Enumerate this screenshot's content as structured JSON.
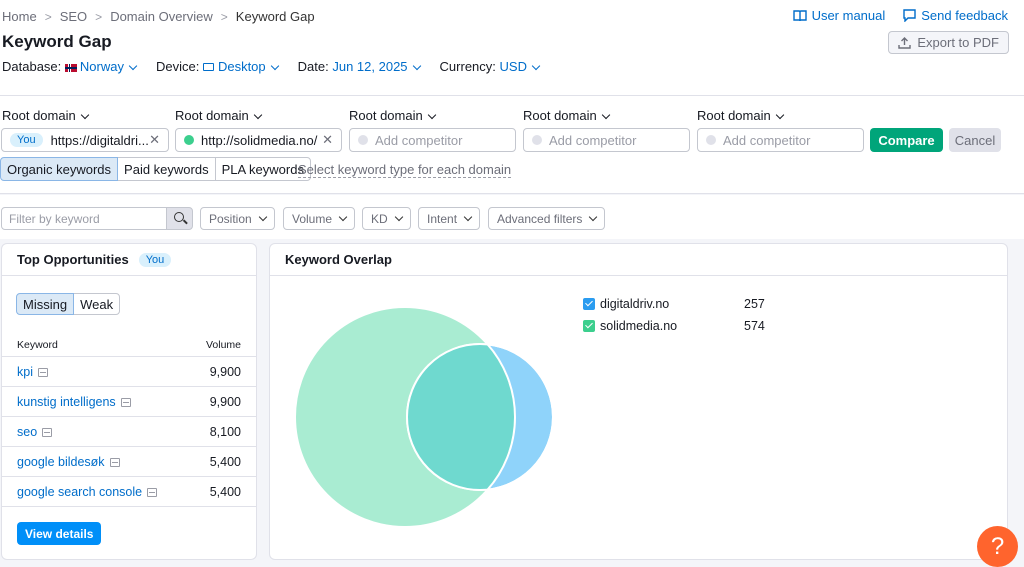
{
  "breadcrumb": [
    "Home",
    "SEO",
    "Domain Overview",
    "Keyword Gap"
  ],
  "breadcrumb_sep": ">",
  "links": {
    "manual": "User manual",
    "feedback": "Send feedback"
  },
  "title": "Keyword Gap",
  "export_label": "Export to PDF",
  "meta": {
    "database_label": "Database:",
    "database_value": "Norway",
    "device_label": "Device:",
    "device_value": "Desktop",
    "date_label": "Date:",
    "date_value": "Jun 12, 2025",
    "currency_label": "Currency:",
    "currency_value": "USD"
  },
  "root_label": "Root domain",
  "domains": [
    {
      "badge": "You",
      "value": "https://digitaldri...",
      "dot_color": ""
    },
    {
      "badge": "",
      "value": "http://solidmedia.no/",
      "dot_color": "#3ccf8e"
    }
  ],
  "competitor_placeholder": "Add competitor",
  "compare_label": "Compare",
  "cancel_label": "Cancel",
  "keyword_types": [
    "Organic keywords",
    "Paid keywords",
    "PLA keywords"
  ],
  "keyword_types_hint": "Select keyword type for each domain",
  "filters": {
    "placeholder": "Filter by keyword",
    "dropdowns": [
      "Position",
      "Volume",
      "KD",
      "Intent",
      "Advanced filters"
    ]
  },
  "top_opportunities": {
    "title": "Top Opportunities",
    "badge": "You",
    "tabs": [
      "Missing",
      "Weak"
    ],
    "col_keyword": "Keyword",
    "col_volume": "Volume",
    "rows": [
      {
        "keyword": "kpi",
        "volume": "9,900"
      },
      {
        "keyword": "kunstig intelligens",
        "volume": "9,900"
      },
      {
        "keyword": "seo",
        "volume": "8,100"
      },
      {
        "keyword": "google bildesøk",
        "volume": "5,400"
      },
      {
        "keyword": "google search console",
        "volume": "5,400"
      }
    ],
    "view_details": "View details"
  },
  "keyword_overlap": {
    "title": "Keyword Overlap",
    "legend": [
      {
        "domain": "digitaldriv.no",
        "count": "257",
        "color": "#2a9cf0"
      },
      {
        "domain": "solidmedia.no",
        "count": "574",
        "color": "#3ccf8e"
      }
    ]
  },
  "help_label": "?",
  "colors": {
    "accent": "#006dca",
    "compare": "#00a57a",
    "help": "#ff642d",
    "circle_a": "#a9ecd2",
    "circle_b": "#8fd3fa",
    "overlap": "#6fd9cf"
  }
}
